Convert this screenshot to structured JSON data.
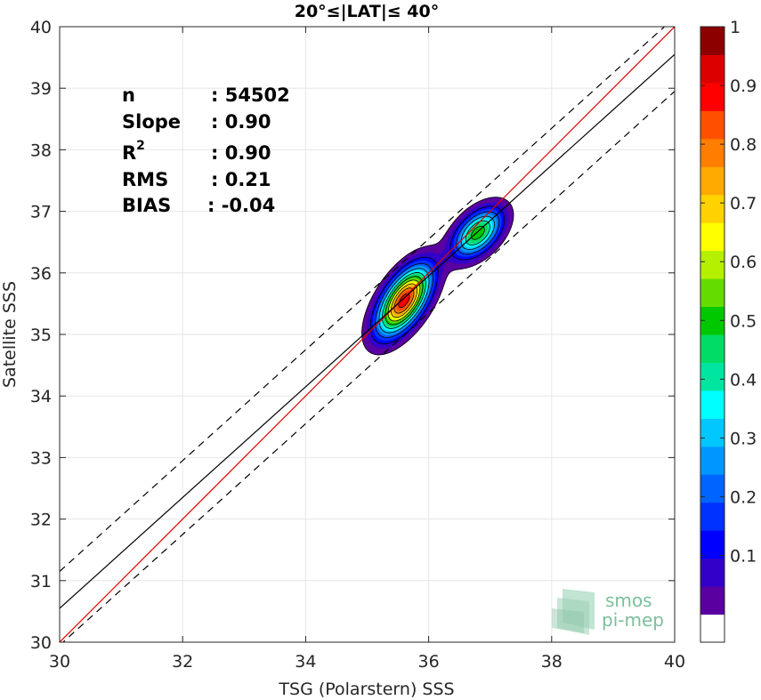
{
  "chart_data": {
    "type": "contour",
    "title": "20°≤|LAT|≤ 40°",
    "xlabel": "TSG (Polarstern) SSS",
    "ylabel": "Satellite SSS",
    "xlim": [
      30,
      40
    ],
    "ylim": [
      30,
      40
    ],
    "xticks": [
      "30",
      "32",
      "34",
      "36",
      "38",
      "40"
    ],
    "yticks": [
      "30",
      "31",
      "32",
      "33",
      "34",
      "35",
      "36",
      "37",
      "38",
      "39",
      "40"
    ],
    "grid": true,
    "stats": {
      "n_label": "n",
      "n_value": ": 54502",
      "slope_label": "Slope",
      "slope_value": ": 0.90",
      "r2_label": "R",
      "r2_sup": "2",
      "r2_value": ": 0.90",
      "rms_label": "RMS",
      "rms_value": ": 0.21",
      "bias_label": "BIAS",
      "bias_value": ": -0.04"
    },
    "lines": [
      {
        "name": "identity",
        "color": "#e00000",
        "style": "solid",
        "slope": 1.0,
        "intercept": 0.0
      },
      {
        "name": "regression",
        "color": "#000000",
        "style": "solid",
        "slope": 0.9,
        "intercept": 3.55
      },
      {
        "name": "upper",
        "color": "#000000",
        "style": "dashed",
        "slope": 0.9,
        "intercept": 4.15
      },
      {
        "name": "lower",
        "color": "#000000",
        "style": "dashed",
        "slope": 0.9,
        "intercept": 2.95
      }
    ],
    "density_peaks": [
      {
        "x": 35.6,
        "y": 35.55,
        "sx": 0.28,
        "sy": 0.36,
        "rho": 0.6,
        "amp": 1.0
      },
      {
        "x": 36.8,
        "y": 36.65,
        "sx": 0.26,
        "sy": 0.26,
        "rho": 0.5,
        "amp": 0.6
      }
    ],
    "levels": [
      0.05,
      0.1,
      0.15,
      0.2,
      0.25,
      0.3,
      0.35,
      0.4,
      0.45,
      0.5,
      0.55,
      0.6,
      0.65,
      0.7,
      0.75,
      0.8,
      0.85,
      0.9,
      0.95
    ],
    "colorbar": {
      "ticks": [
        "0.1",
        "0.2",
        "0.3",
        "0.4",
        "0.5",
        "0.6",
        "0.7",
        "0.8",
        "0.9",
        "1"
      ],
      "colors": [
        "#ffffff",
        "#5a00a0",
        "#3200c8",
        "#0000ff",
        "#0032ff",
        "#0064ff",
        "#0096ff",
        "#00c8ff",
        "#00ffff",
        "#00e6a0",
        "#00dc64",
        "#00c800",
        "#64dc00",
        "#b4f000",
        "#ffff00",
        "#ffd200",
        "#ffaa00",
        "#ff7d00",
        "#ff5000",
        "#ff0000",
        "#dc0000",
        "#8c0000"
      ]
    },
    "logo": {
      "line1": "smos",
      "line2": "pi-mep"
    }
  }
}
